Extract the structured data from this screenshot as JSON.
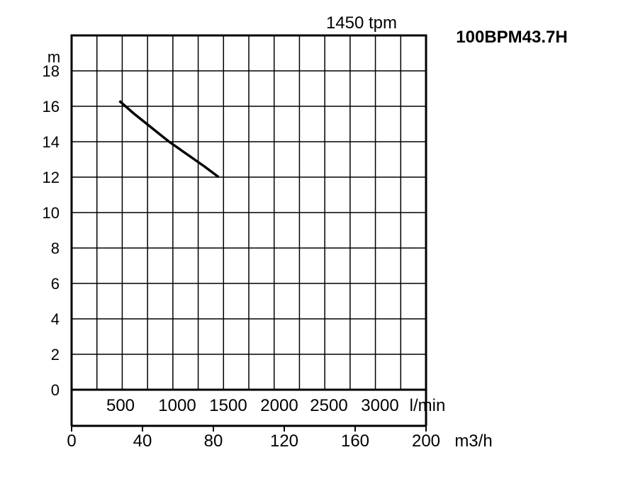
{
  "chart_data": {
    "type": "line",
    "title": "100BPM43.7H",
    "subtitle": "1450 tpm",
    "ylabel": "m",
    "xlabel": "m3/h",
    "secondary_xlabel": "l/min",
    "ylim": [
      0,
      20
    ],
    "xlim": [
      0,
      200
    ],
    "y_ticks": [
      "0",
      "2",
      "4",
      "6",
      "8",
      "10",
      "12",
      "14",
      "16",
      "18"
    ],
    "x_ticks": [
      "0",
      "40",
      "80",
      "120",
      "160",
      "200"
    ],
    "secondary_x_ticks": [
      "500",
      "1000",
      "1500",
      "2000",
      "2500",
      "3000"
    ],
    "grid": true,
    "series": [
      {
        "x": [
          27,
          35,
          45,
          55,
          65,
          75,
          83
        ],
        "y": [
          16.3,
          15.6,
          14.8,
          14.0,
          13.3,
          12.6,
          12.0
        ]
      }
    ]
  }
}
